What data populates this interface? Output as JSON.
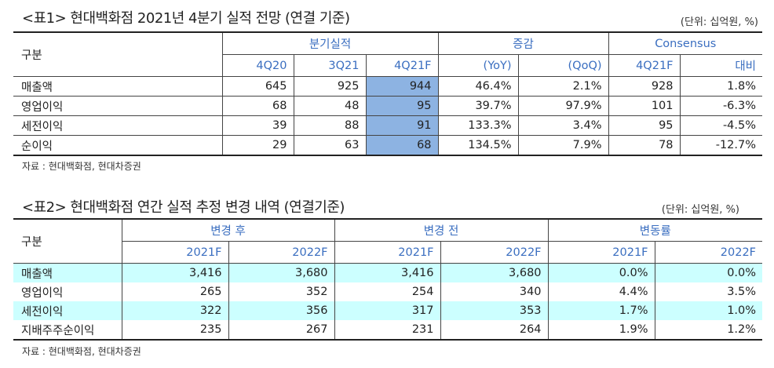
{
  "table1": {
    "title": "<표1> 현대백화점 2021년 4분기 실적 전망  (연결 기준)",
    "unit": "(단위: 십억원, %)",
    "row_header": "구분",
    "groups": [
      "분기실적",
      "증감",
      "Consensus"
    ],
    "columns": [
      "4Q20",
      "3Q21",
      "4Q21F",
      "(YoY)",
      "(QoQ)",
      "4Q21F",
      "대비"
    ],
    "rows": [
      {
        "label": "매출액",
        "values": [
          "645",
          "925",
          "944",
          "46.4%",
          "2.1%",
          "928",
          "1.8%"
        ]
      },
      {
        "label": "영업이익",
        "values": [
          "68",
          "48",
          "95",
          "39.7%",
          "97.9%",
          "101",
          "-6.3%"
        ]
      },
      {
        "label": "세전이익",
        "values": [
          "39",
          "88",
          "91",
          "133.3%",
          "3.4%",
          "95",
          "-4.5%"
        ]
      },
      {
        "label": "순이익",
        "values": [
          "29",
          "63",
          "68",
          "134.5%",
          "7.9%",
          "78",
          "-12.7%"
        ]
      }
    ],
    "source": "자료 : 현대백화점, 현대차증권",
    "highlight_color": "#8db3e2"
  },
  "table2": {
    "title": "<표2> 현대백화점 연간 실적 추정 변경 내역 (연결기준)",
    "unit": "(단위: 십억원, %)",
    "row_header": "구분",
    "groups": [
      "변경 후",
      "변경 전",
      "변동률"
    ],
    "columns": [
      "2021F",
      "2022F",
      "2021F",
      "2022F",
      "2021F",
      "2022F"
    ],
    "rows": [
      {
        "label": "매출액",
        "values": [
          "3,416",
          "3,680",
          "3,416",
          "3,680",
          "0.0%",
          "0.0%"
        ]
      },
      {
        "label": "영업이익",
        "values": [
          "265",
          "352",
          "254",
          "340",
          "4.4%",
          "3.5%"
        ]
      },
      {
        "label": "세전이익",
        "values": [
          "322",
          "356",
          "317",
          "353",
          "1.7%",
          "1.0%"
        ]
      },
      {
        "label": "지배주주순이익",
        "values": [
          "235",
          "267",
          "231",
          "264",
          "1.9%",
          "1.2%"
        ]
      }
    ],
    "source": "자료 : 현대백화점, 현대차증권",
    "stripe_color": "#ccffff"
  }
}
